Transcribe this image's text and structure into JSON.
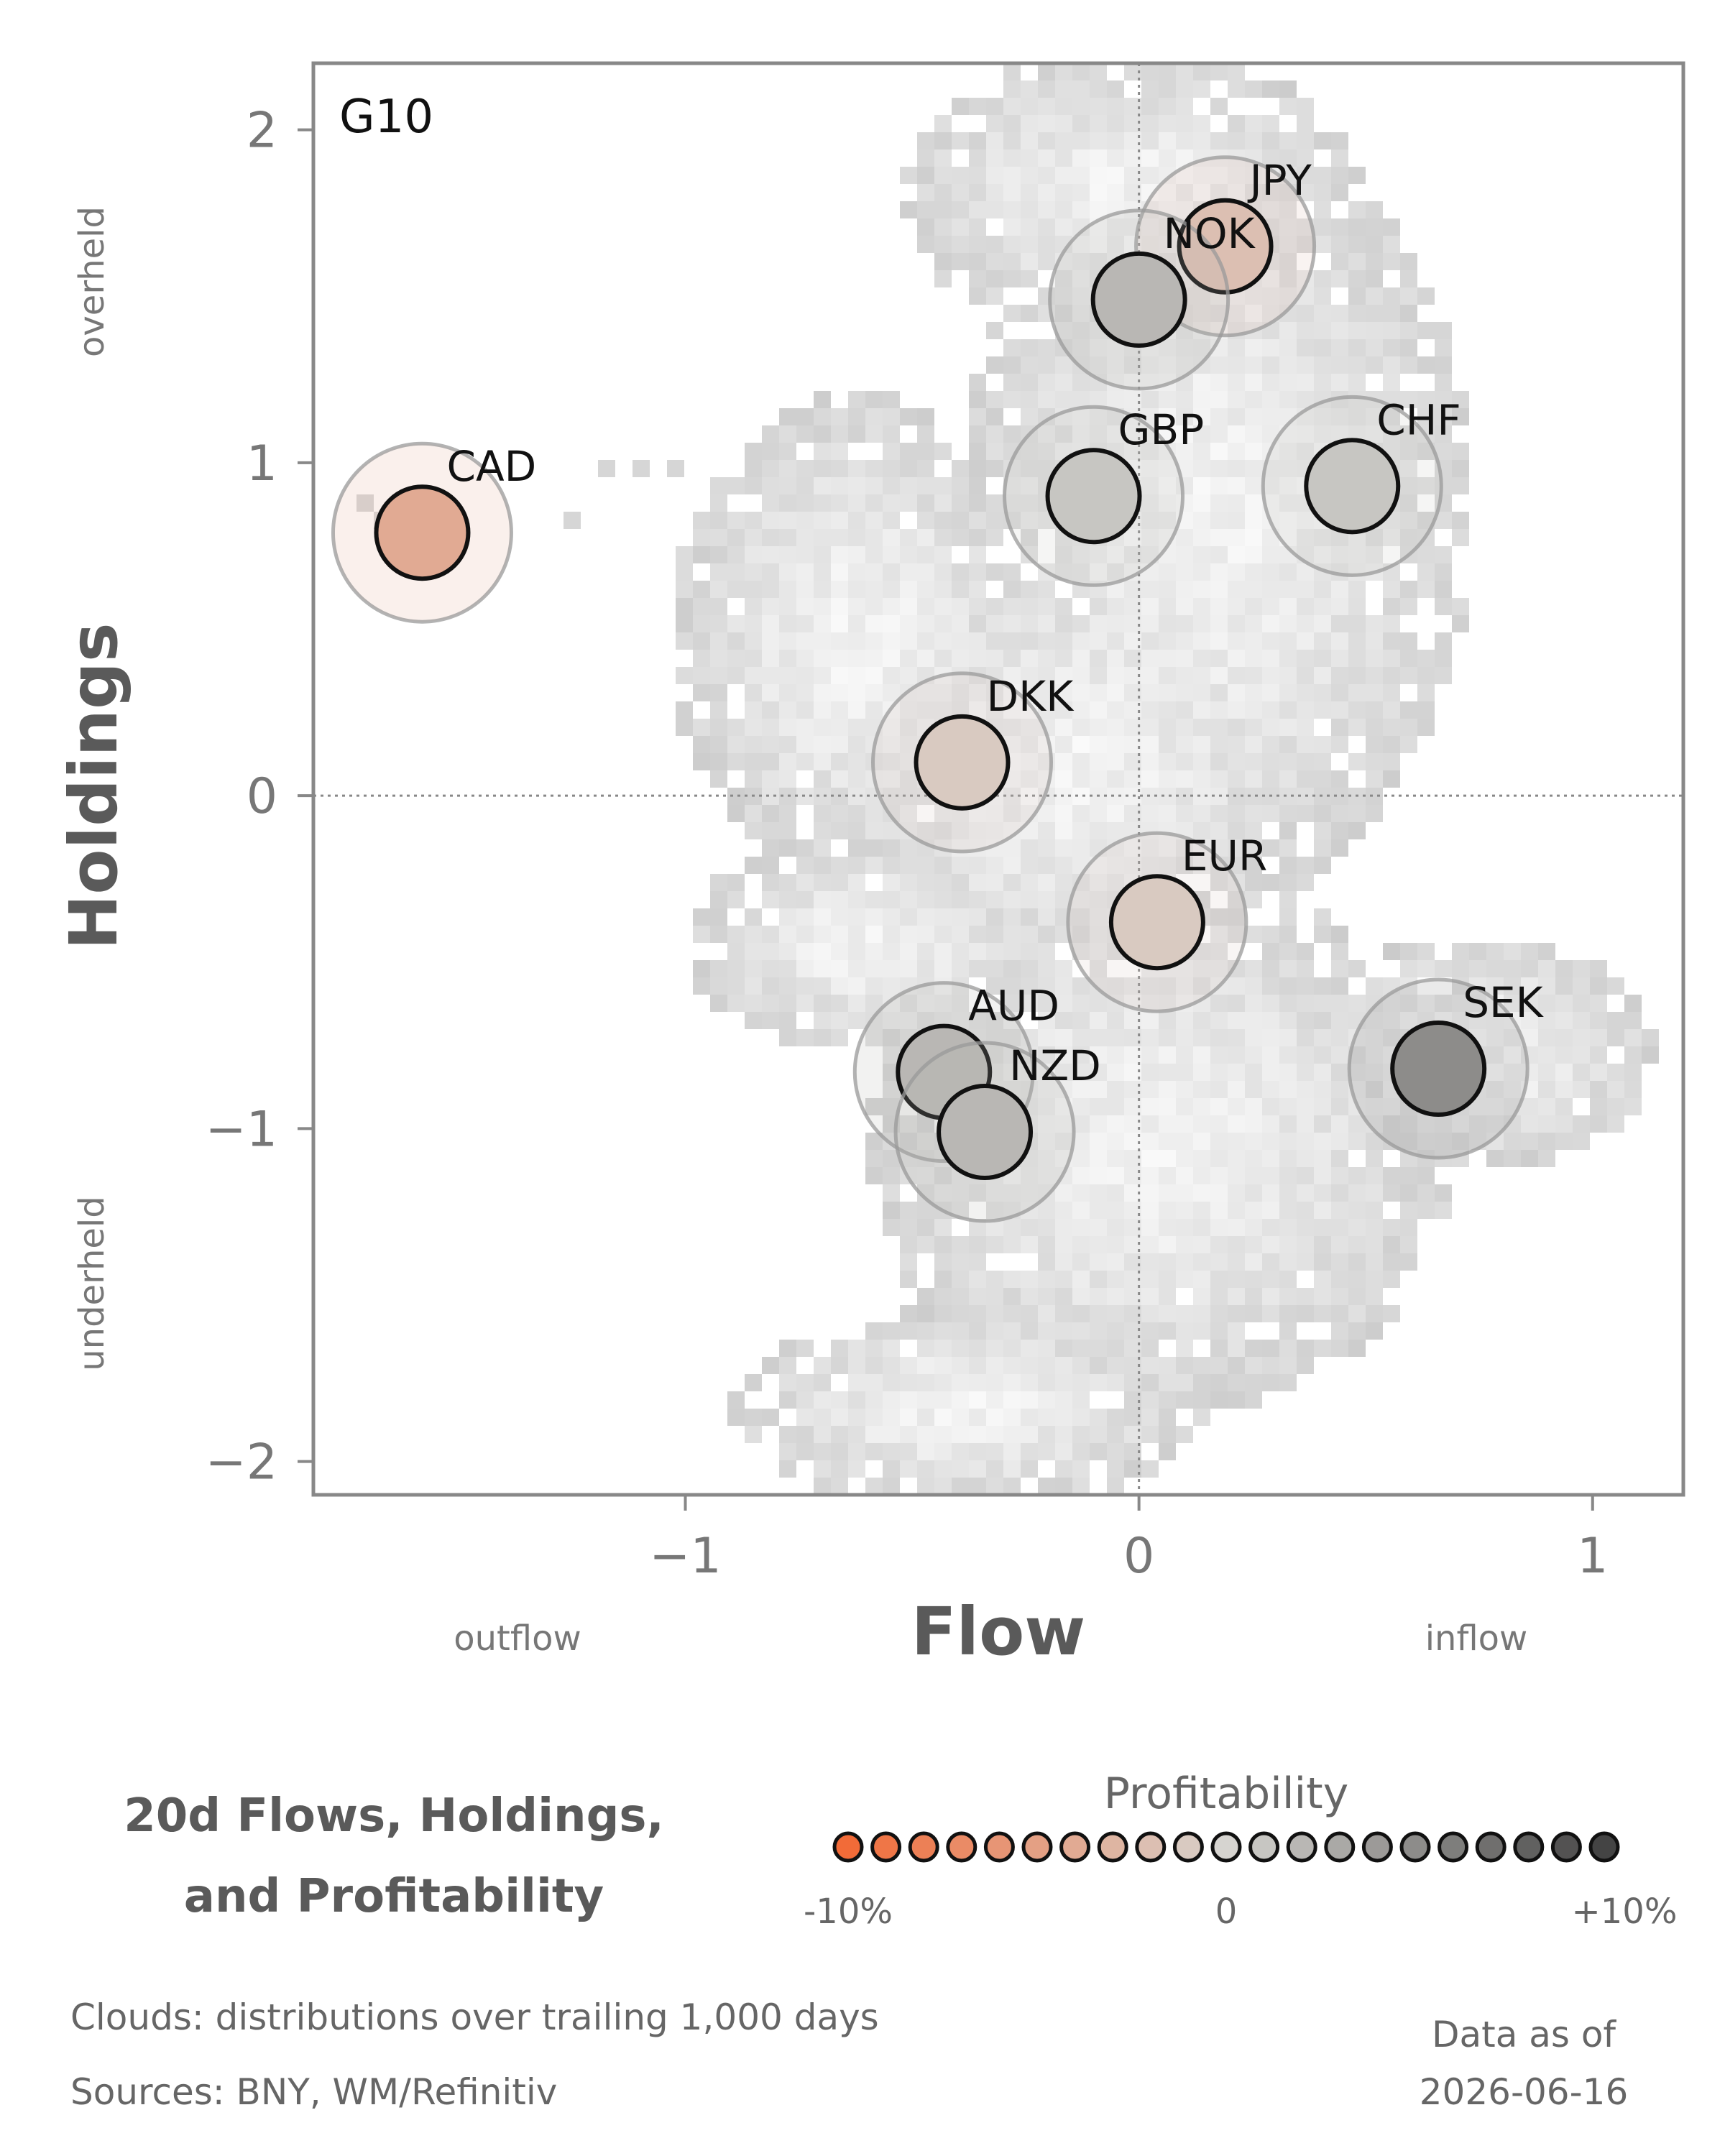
{
  "chart_data": {
    "type": "scatter",
    "panel_label": "G10",
    "xlabel": "Flow",
    "ylabel": "Holdings",
    "x_low_note": "outflow",
    "x_high_note": "inflow",
    "y_high_note": "overheld",
    "y_low_note": "underheld",
    "xlim": [
      -1.82,
      1.2
    ],
    "ylim": [
      -2.1,
      2.2
    ],
    "x_ticks": [
      -1,
      0,
      1
    ],
    "x_tick_labels": [
      "−1",
      "0",
      "1"
    ],
    "y_ticks": [
      -2,
      -1,
      0,
      1,
      2
    ],
    "y_tick_labels": [
      "−2",
      "−1",
      "0",
      "1",
      "2"
    ],
    "reference_lines": {
      "x": 0,
      "y": 0
    },
    "background": "grey 2D density clouds of each currency's trailing distribution",
    "points": [
      {
        "label": "JPY",
        "flow": 0.19,
        "holdings": 1.65,
        "profitability": -2
      },
      {
        "label": "NOK",
        "flow": 0.0,
        "holdings": 1.49,
        "profitability": 2
      },
      {
        "label": "GBP",
        "flow": -0.1,
        "holdings": 0.9,
        "profitability": 1
      },
      {
        "label": "CHF",
        "flow": 0.47,
        "holdings": 0.93,
        "profitability": 1
      },
      {
        "label": "CAD",
        "flow": -1.58,
        "holdings": 0.79,
        "profitability": -4
      },
      {
        "label": "DKK",
        "flow": -0.39,
        "holdings": 0.1,
        "profitability": -1
      },
      {
        "label": "EUR",
        "flow": 0.04,
        "holdings": -0.38,
        "profitability": -1
      },
      {
        "label": "AUD",
        "flow": -0.43,
        "holdings": -0.83,
        "profitability": 2
      },
      {
        "label": "NZD",
        "flow": -0.34,
        "holdings": -1.01,
        "profitability": 2
      },
      {
        "label": "SEK",
        "flow": 0.66,
        "holdings": -0.82,
        "profitability": 5
      }
    ],
    "legend": {
      "title": "Profitability",
      "min_label": "-10%",
      "mid_label": "0",
      "max_label": "+10%",
      "range": [
        -10,
        10
      ],
      "steps": 21,
      "color_low": "#f26b38",
      "color_mid": "#d6d4d0",
      "color_high": "#444444"
    }
  },
  "title_lines": [
    "20d Flows, Holdings,",
    "and Profitability"
  ],
  "footnote_clouds": "Clouds:  distributions over trailing 1,000 days",
  "footnote_sources": "Sources:  BNY, WM/Refinitiv",
  "data_as_of_label": "Data as of",
  "data_as_of_date": "2026-06-16"
}
